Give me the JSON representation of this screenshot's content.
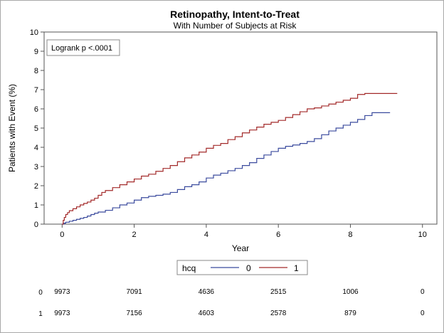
{
  "chart_data": {
    "type": "line",
    "title": "Retinopathy, Intent-to-Treat",
    "subtitle": "With Number of Subjects at Risk",
    "xlabel": "Year",
    "ylabel": "Patients with Event (%)",
    "xlim": [
      -0.5,
      10.4
    ],
    "ylim": [
      0,
      10
    ],
    "xticks": [
      0,
      2,
      4,
      6,
      8,
      10
    ],
    "yticks": [
      0,
      1,
      2,
      3,
      4,
      5,
      6,
      7,
      8,
      9,
      10
    ],
    "grid": false,
    "annotation": "Logrank p <.0001",
    "legend": {
      "title": "hcq",
      "placement": "bottom",
      "entries": [
        "0",
        "1"
      ]
    },
    "series": [
      {
        "name": "0",
        "color": "#3b4b9e",
        "step": true,
        "points": [
          [
            0,
            0
          ],
          [
            0.05,
            0.05
          ],
          [
            0.1,
            0.1
          ],
          [
            0.2,
            0.15
          ],
          [
            0.3,
            0.2
          ],
          [
            0.4,
            0.25
          ],
          [
            0.5,
            0.3
          ],
          [
            0.6,
            0.35
          ],
          [
            0.7,
            0.42
          ],
          [
            0.8,
            0.5
          ],
          [
            0.9,
            0.57
          ],
          [
            1.0,
            0.63
          ],
          [
            1.2,
            0.72
          ],
          [
            1.4,
            0.85
          ],
          [
            1.6,
            1.0
          ],
          [
            1.8,
            1.1
          ],
          [
            2.0,
            1.25
          ],
          [
            2.2,
            1.38
          ],
          [
            2.4,
            1.45
          ],
          [
            2.6,
            1.5
          ],
          [
            2.8,
            1.56
          ],
          [
            3.0,
            1.65
          ],
          [
            3.2,
            1.8
          ],
          [
            3.4,
            1.95
          ],
          [
            3.6,
            2.05
          ],
          [
            3.8,
            2.2
          ],
          [
            4.0,
            2.4
          ],
          [
            4.2,
            2.55
          ],
          [
            4.4,
            2.65
          ],
          [
            4.6,
            2.78
          ],
          [
            4.8,
            2.9
          ],
          [
            5.0,
            3.05
          ],
          [
            5.2,
            3.2
          ],
          [
            5.4,
            3.42
          ],
          [
            5.6,
            3.6
          ],
          [
            5.8,
            3.78
          ],
          [
            6.0,
            3.95
          ],
          [
            6.2,
            4.05
          ],
          [
            6.4,
            4.12
          ],
          [
            6.6,
            4.2
          ],
          [
            6.8,
            4.3
          ],
          [
            7.0,
            4.45
          ],
          [
            7.2,
            4.65
          ],
          [
            7.4,
            4.85
          ],
          [
            7.6,
            5.0
          ],
          [
            7.8,
            5.15
          ],
          [
            8.0,
            5.3
          ],
          [
            8.2,
            5.45
          ],
          [
            8.4,
            5.65
          ],
          [
            8.6,
            5.8
          ],
          [
            9.1,
            5.8
          ]
        ]
      },
      {
        "name": "1",
        "color": "#a32a2a",
        "step": true,
        "points": [
          [
            0,
            0
          ],
          [
            0.03,
            0.2
          ],
          [
            0.06,
            0.35
          ],
          [
            0.1,
            0.5
          ],
          [
            0.15,
            0.6
          ],
          [
            0.2,
            0.7
          ],
          [
            0.3,
            0.8
          ],
          [
            0.4,
            0.9
          ],
          [
            0.5,
            1.0
          ],
          [
            0.6,
            1.08
          ],
          [
            0.7,
            1.15
          ],
          [
            0.8,
            1.25
          ],
          [
            0.9,
            1.35
          ],
          [
            1.0,
            1.5
          ],
          [
            1.1,
            1.65
          ],
          [
            1.2,
            1.75
          ],
          [
            1.4,
            1.9
          ],
          [
            1.6,
            2.05
          ],
          [
            1.8,
            2.2
          ],
          [
            2.0,
            2.35
          ],
          [
            2.2,
            2.5
          ],
          [
            2.4,
            2.6
          ],
          [
            2.6,
            2.75
          ],
          [
            2.8,
            2.9
          ],
          [
            3.0,
            3.05
          ],
          [
            3.2,
            3.25
          ],
          [
            3.4,
            3.45
          ],
          [
            3.6,
            3.6
          ],
          [
            3.8,
            3.75
          ],
          [
            4.0,
            3.95
          ],
          [
            4.2,
            4.1
          ],
          [
            4.4,
            4.2
          ],
          [
            4.6,
            4.4
          ],
          [
            4.8,
            4.55
          ],
          [
            5.0,
            4.75
          ],
          [
            5.2,
            4.9
          ],
          [
            5.4,
            5.05
          ],
          [
            5.6,
            5.2
          ],
          [
            5.8,
            5.3
          ],
          [
            6.0,
            5.4
          ],
          [
            6.2,
            5.55
          ],
          [
            6.4,
            5.7
          ],
          [
            6.6,
            5.85
          ],
          [
            6.8,
            6.0
          ],
          [
            7.0,
            6.05
          ],
          [
            7.2,
            6.15
          ],
          [
            7.4,
            6.25
          ],
          [
            7.6,
            6.35
          ],
          [
            7.8,
            6.45
          ],
          [
            8.0,
            6.55
          ],
          [
            8.2,
            6.75
          ],
          [
            8.4,
            6.8
          ],
          [
            9.3,
            6.8
          ]
        ]
      }
    ],
    "at_risk": {
      "times": [
        0,
        2,
        4,
        6,
        8,
        10
      ],
      "rows": [
        {
          "group": "0",
          "values": [
            "9973",
            "7091",
            "4636",
            "2515",
            "1006",
            "0"
          ]
        },
        {
          "group": "1",
          "values": [
            "9973",
            "7156",
            "4603",
            "2578",
            "879",
            "0"
          ]
        }
      ]
    }
  }
}
